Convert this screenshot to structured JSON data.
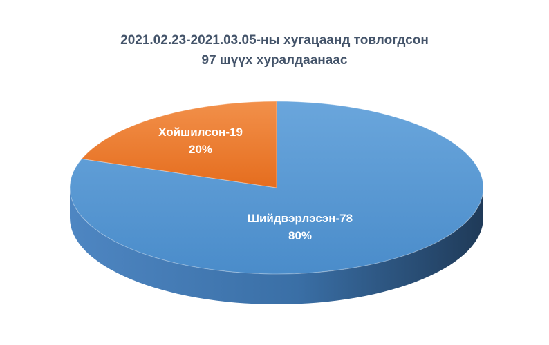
{
  "chart_data": {
    "type": "pie",
    "style": "3d",
    "title_lines": [
      "2021.02.23-2021.03.05-ны хугацаанд товлогдсон",
      "97 шүүх хуралдаанаас"
    ],
    "slices": [
      {
        "label": "Шийдвэрлэсэн-78",
        "value": 78,
        "percent_label": "80%",
        "color": "#5b9bd5"
      },
      {
        "label": "Хойшилсон-19",
        "value": 19,
        "percent_label": "20%",
        "color": "#ed7d31"
      }
    ],
    "legend": "none"
  }
}
